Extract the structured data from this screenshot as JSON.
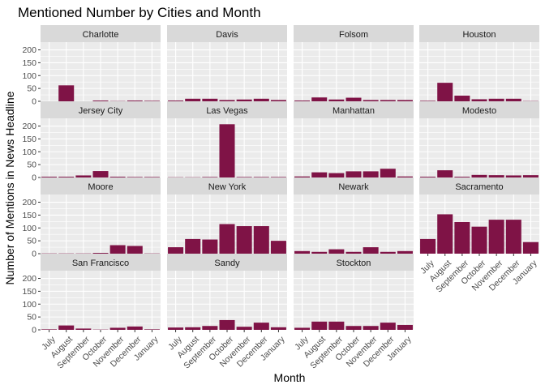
{
  "chart_data": {
    "type": "bar",
    "title": "Mentioned Number by Cities and Month",
    "xlabel": "Month",
    "ylabel": "Number of Mentions in News Headline",
    "categories": [
      "July",
      "August",
      "September",
      "October",
      "November",
      "December",
      "January"
    ],
    "ylim": [
      0,
      230
    ],
    "yticks": [
      0,
      50,
      100,
      150,
      200
    ],
    "grid": true,
    "facet_columns": 4,
    "bar_color": "#7f1346",
    "panel_bg": "#ebebeb",
    "strip_bg": "#d9d9d9",
    "series": [
      {
        "name": "Charlotte",
        "values": [
          0,
          62,
          0,
          3,
          1,
          3,
          2
        ]
      },
      {
        "name": "Davis",
        "values": [
          3,
          10,
          10,
          5,
          7,
          10,
          5
        ]
      },
      {
        "name": "Folsom",
        "values": [
          3,
          15,
          7,
          14,
          5,
          5,
          5
        ]
      },
      {
        "name": "Houston",
        "values": [
          2,
          72,
          22,
          8,
          10,
          10,
          1
        ]
      },
      {
        "name": "Jersey City",
        "values": [
          3,
          3,
          8,
          25,
          3,
          2,
          2
        ]
      },
      {
        "name": "Las Vegas",
        "values": [
          1,
          1,
          2,
          207,
          2,
          2,
          2
        ]
      },
      {
        "name": "Manhattan",
        "values": [
          4,
          20,
          17,
          24,
          24,
          34,
          4
        ]
      },
      {
        "name": "Modesto",
        "values": [
          3,
          28,
          3,
          10,
          9,
          8,
          9
        ]
      },
      {
        "name": "Moore",
        "values": [
          1,
          1,
          1,
          3,
          33,
          30,
          1
        ]
      },
      {
        "name": "New York",
        "values": [
          25,
          57,
          55,
          115,
          107,
          107,
          50
        ]
      },
      {
        "name": "Newark",
        "values": [
          10,
          7,
          17,
          7,
          25,
          7,
          10
        ]
      },
      {
        "name": "Sacramento",
        "values": [
          57,
          153,
          123,
          105,
          132,
          132,
          45
        ]
      },
      {
        "name": "San Francisco",
        "values": [
          2,
          17,
          5,
          1,
          8,
          13,
          2
        ]
      },
      {
        "name": "Sandy",
        "values": [
          9,
          10,
          15,
          38,
          12,
          28,
          10
        ]
      },
      {
        "name": "Stockton",
        "values": [
          8,
          32,
          32,
          15,
          15,
          28,
          19
        ]
      }
    ]
  }
}
